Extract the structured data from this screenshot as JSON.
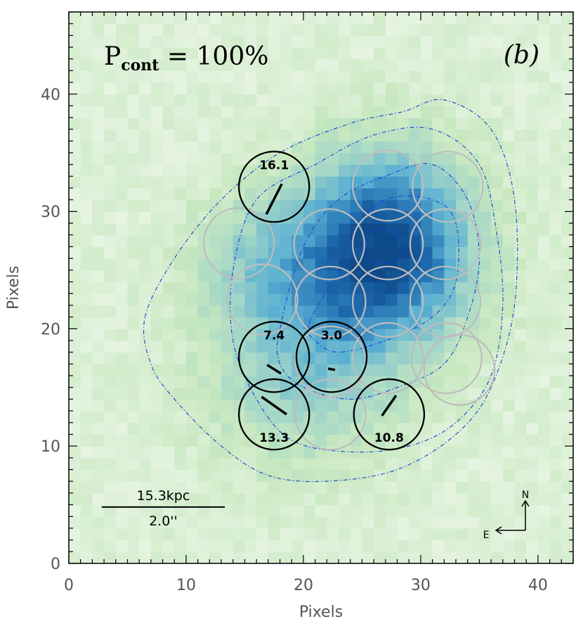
{
  "chart_data": {
    "type": "heatmap",
    "title": "P",
    "title_subscript": "cont",
    "title_value": " = 100%",
    "panel_label": "(b)",
    "xlabel": "Pixels",
    "ylabel": "Pixels",
    "xlim": [
      0,
      43
    ],
    "ylim": [
      0,
      47
    ],
    "xticks": [
      0,
      10,
      20,
      30,
      40
    ],
    "yticks": [
      0,
      10,
      20,
      30,
      40
    ],
    "colormap": [
      "#eaf6e6",
      "#c8e8c0",
      "#9fd4c8",
      "#5ab0d2",
      "#1f6cb0",
      "#0e4a8a"
    ],
    "source_center": {
      "x": 27,
      "y": 27
    },
    "contours": [
      {
        "level": 1,
        "color": "#1a3fd6",
        "points": [
          [
            20.5,
            20.5
          ],
          [
            23,
            25
          ],
          [
            24,
            28
          ],
          [
            27,
            31
          ],
          [
            31,
            31
          ],
          [
            33,
            29
          ],
          [
            33,
            24
          ],
          [
            31,
            21
          ],
          [
            27,
            19
          ],
          [
            23,
            18
          ],
          [
            21,
            19
          ]
        ]
      },
      {
        "level": 2,
        "color": "#1a3fd6",
        "points": [
          [
            18,
            20
          ],
          [
            20,
            27
          ],
          [
            23,
            31
          ],
          [
            27,
            33
          ],
          [
            31,
            34
          ],
          [
            34,
            31
          ],
          [
            35,
            26
          ],
          [
            34,
            21
          ],
          [
            32,
            17
          ],
          [
            28,
            15
          ],
          [
            24,
            14
          ],
          [
            20,
            15
          ],
          [
            18,
            17
          ]
        ]
      },
      {
        "level": 3,
        "color": "#1a3fd6",
        "points": [
          [
            14,
            25
          ],
          [
            16,
            31
          ],
          [
            21,
            34
          ],
          [
            26,
            36.5
          ],
          [
            31,
            37
          ],
          [
            35,
            34
          ],
          [
            36.5,
            28
          ],
          [
            37,
            22
          ],
          [
            36,
            16
          ],
          [
            33,
            12
          ],
          [
            29,
            10
          ],
          [
            24,
            9.5
          ],
          [
            19,
            10.5
          ],
          [
            16,
            14
          ],
          [
            14,
            19
          ]
        ]
      },
      {
        "level": 4,
        "color": "#1a3fd6",
        "points": [
          [
            6.5,
            21
          ],
          [
            9,
            26
          ],
          [
            13,
            31
          ],
          [
            18,
            35
          ],
          [
            24,
            37.5
          ],
          [
            28.5,
            38.5
          ],
          [
            32,
            39.5
          ],
          [
            36,
            37
          ],
          [
            38,
            31
          ],
          [
            38,
            22
          ],
          [
            36,
            15
          ],
          [
            33,
            11
          ],
          [
            28,
            8
          ],
          [
            22,
            7
          ],
          [
            17,
            7.5
          ],
          [
            13,
            10
          ],
          [
            9,
            14
          ],
          [
            7,
            17
          ]
        ]
      },
      {
        "level": 5,
        "color": "#1a3fd6",
        "points": [
          [
            25.5,
            26
          ],
          [
            25.5,
            28
          ],
          [
            27,
            28.5
          ],
          [
            28.5,
            27.5
          ],
          [
            28,
            26
          ],
          [
            26.5,
            25.5
          ]
        ]
      }
    ],
    "grey_apertures": [
      {
        "x": 27.2,
        "y": 32.2
      },
      {
        "x": 32.3,
        "y": 32.1
      },
      {
        "x": 14.5,
        "y": 27.3
      },
      {
        "x": 22.2,
        "y": 27.2
      },
      {
        "x": 27.2,
        "y": 27.2
      },
      {
        "x": 32.1,
        "y": 27.2
      },
      {
        "x": 16.5,
        "y": 22.5
      },
      {
        "x": 22.3,
        "y": 22.3
      },
      {
        "x": 27.2,
        "y": 22.3
      },
      {
        "x": 32.1,
        "y": 22.3
      },
      {
        "x": 27.2,
        "y": 17.5
      },
      {
        "x": 32.2,
        "y": 17.5
      },
      {
        "x": 33.3,
        "y": 16.5
      },
      {
        "x": 22.3,
        "y": 17.2
      },
      {
        "x": 22.3,
        "y": 12.7
      }
    ],
    "polarization_apertures": [
      {
        "x": 17.5,
        "y": 32.1,
        "label": "16.1",
        "label_pos": "above",
        "angle": 63,
        "length": 2.9
      },
      {
        "x": 17.5,
        "y": 17.6,
        "label": "7.4",
        "label_pos": "above",
        "angle": -32,
        "length": 1.4
      },
      {
        "x": 22.4,
        "y": 17.6,
        "label": "3.0",
        "label_pos": "above",
        "angle": -10,
        "length": 0.6
      },
      {
        "x": 17.5,
        "y": 12.7,
        "label": "13.3",
        "label_pos": "below",
        "angle": -35,
        "length": 2.6
      },
      {
        "x": 27.3,
        "y": 12.7,
        "label": "10.8",
        "label_pos": "below",
        "angle": 55,
        "length": 2.1
      }
    ],
    "aperture_radius": 3.0,
    "scale_bar": {
      "top_label": "15.3kpc",
      "bottom_label": "2.0''",
      "x_start": 2.8,
      "x_end": 13.3,
      "y": 4.8
    },
    "compass": {
      "north_label": "N",
      "east_label": "E"
    }
  }
}
